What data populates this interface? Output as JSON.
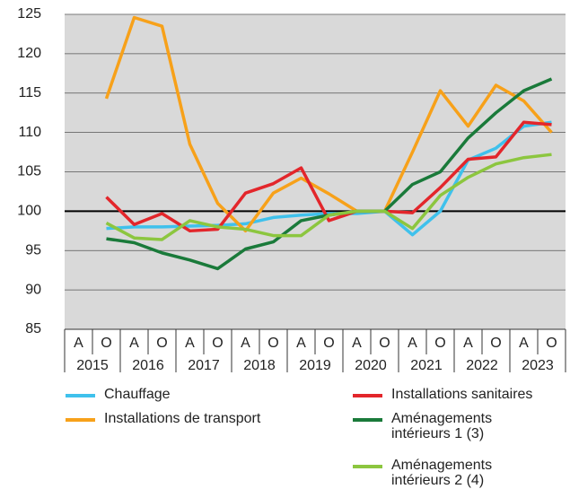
{
  "chart_data": {
    "type": "line",
    "categories": [
      "A",
      "O",
      "A",
      "O",
      "A",
      "O",
      "A",
      "O",
      "A",
      "O",
      "A",
      "O",
      "A",
      "O",
      "A",
      "O",
      "A",
      "O"
    ],
    "years": [
      "2015",
      "2016",
      "2017",
      "2018",
      "2019",
      "2020",
      "2021",
      "2022",
      "2023"
    ],
    "ylim": [
      85,
      125
    ],
    "yticks": [
      85,
      90,
      95,
      100,
      105,
      110,
      115,
      120,
      125
    ],
    "grid": true,
    "reference_line": 100,
    "series": [
      {
        "name": "Chauffage",
        "color": "#3fc1ec",
        "values": [
          null,
          97.8,
          98,
          98,
          98.1,
          98.2,
          98.4,
          99.2,
          99.5,
          99.7,
          99.7,
          100,
          97,
          100,
          106.5,
          108,
          110.8,
          111.3
        ]
      },
      {
        "name": "Installations de transport",
        "color": "#f7a11a",
        "values": [
          null,
          114.3,
          124.6,
          123.5,
          108.5,
          101,
          97.5,
          102.3,
          104.2,
          102.2,
          100,
          100,
          107.5,
          115.3,
          110.8,
          116,
          114,
          110
        ]
      },
      {
        "name": "Installations sanitaires",
        "color": "#e3262b",
        "values": [
          null,
          101.8,
          98.3,
          99.7,
          97.5,
          97.7,
          102.3,
          103.5,
          105.5,
          98.8,
          100,
          100,
          99.8,
          103,
          106.6,
          106.9,
          111.3,
          111
        ]
      },
      {
        "name": "Aménagements intérieurs 1 (3)",
        "color": "#1a7a3a",
        "values": [
          null,
          96.5,
          96,
          94.7,
          93.8,
          92.7,
          95.2,
          96.1,
          98.8,
          99.5,
          100,
          100,
          103.4,
          105,
          109.3,
          112.5,
          115.3,
          116.8
        ]
      },
      {
        "name": "Aménagements intérieurs 2 (4)",
        "color": "#8cc63f",
        "values": [
          null,
          98.5,
          96.6,
          96.4,
          98.8,
          98,
          97.7,
          96.9,
          96.9,
          99.5,
          100,
          100,
          97.8,
          102,
          104.3,
          106,
          106.8,
          107.2
        ]
      }
    ]
  }
}
